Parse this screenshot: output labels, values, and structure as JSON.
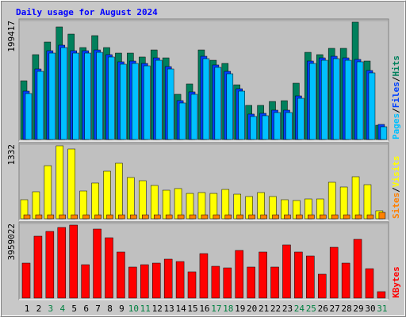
{
  "title": "Daily usage for August 2024",
  "separator": "/",
  "chart_data": [
    {
      "type": "bar",
      "ylim": [
        0,
        199417
      ],
      "yticks": [
        199417
      ],
      "series": [
        {
          "name": "Hits",
          "color": "#00805c",
          "values": [
            98400,
            142300,
            163500,
            188800,
            176800,
            154200,
            174200,
            154200,
            144900,
            144900,
            138300,
            150200,
            136900,
            75800,
            93100,
            150200,
            132900,
            127600,
            91700,
            57200,
            57200,
            63800,
            65100,
            94400,
            146200,
            142300,
            152900,
            152900,
            196800,
            131600,
            23900
          ]
        },
        {
          "name": "Files",
          "color": "#0040ff",
          "values": [
            81100,
            118300,
            148900,
            158200,
            148900,
            148900,
            150200,
            142300,
            130300,
            131600,
            127600,
            136900,
            122300,
            65200,
            79800,
            139600,
            125000,
            114300,
            85100,
            42600,
            43900,
            49200,
            49200,
            73100,
            131600,
            136900,
            139600,
            136900,
            134300,
            115700,
            25300
          ]
        },
        {
          "name": "Pages",
          "color": "#00c0ff",
          "values": [
            77100,
            114300,
            144900,
            154200,
            144900,
            144900,
            146200,
            138300,
            126300,
            127600,
            123600,
            132900,
            118300,
            61200,
            75800,
            135600,
            121000,
            110300,
            81100,
            38600,
            39900,
            45200,
            45200,
            69100,
            127600,
            132900,
            135600,
            132900,
            130300,
            111700,
            21300
          ]
        }
      ]
    },
    {
      "type": "bar",
      "ylim": [
        0,
        1332
      ],
      "yticks": [
        1332
      ],
      "series": [
        {
          "name": "Visits",
          "color": "#ffff00",
          "values": [
            340,
            482,
            949,
            1304,
            1247,
            496,
            638,
            850,
            992,
            737,
            680,
            595,
            510,
            539,
            453,
            468,
            453,
            524,
            439,
            397,
            468,
            397,
            340,
            326,
            354,
            354,
            652,
            567,
            751,
            609,
            142
          ]
        },
        {
          "name": "Sites",
          "color": "#ff8000",
          "values": [
            70,
            70,
            70,
            70,
            70,
            70,
            70,
            70,
            70,
            70,
            70,
            70,
            70,
            70,
            70,
            70,
            70,
            70,
            70,
            70,
            70,
            70,
            70,
            70,
            70,
            70,
            70,
            70,
            70,
            70,
            113
          ]
        }
      ]
    },
    {
      "type": "bar",
      "ylim": [
        0,
        3959022
      ],
      "yticks": [
        3959022
      ],
      "categories": [
        "1",
        "2",
        "3",
        "4",
        "5",
        "6",
        "7",
        "8",
        "9",
        "10",
        "11",
        "12",
        "13",
        "14",
        "15",
        "16",
        "17",
        "18",
        "19",
        "20",
        "21",
        "22",
        "23",
        "24",
        "25",
        "26",
        "27",
        "28",
        "29",
        "30",
        "31"
      ],
      "weekend_color": "#008040",
      "weekends": [
        2,
        3,
        9,
        10,
        16,
        17,
        23,
        24,
        30
      ],
      "series": [
        {
          "name": "KBytes",
          "color": "#ff0000",
          "values": [
            1853000,
            3285000,
            3538000,
            3748000,
            3875000,
            1769000,
            3664000,
            3201000,
            2443000,
            1643000,
            1769000,
            1853000,
            2064000,
            1937000,
            1390000,
            2359000,
            1685000,
            1600000,
            2527000,
            1643000,
            2443000,
            1643000,
            2822000,
            2443000,
            2232000,
            1264000,
            2695000,
            1853000,
            3117000,
            1558000,
            337000
          ]
        }
      ]
    }
  ]
}
